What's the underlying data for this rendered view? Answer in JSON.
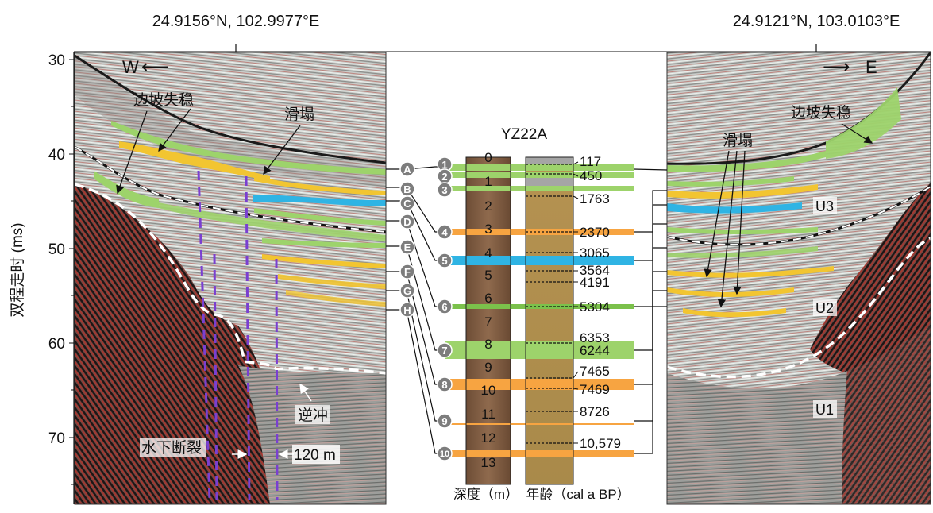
{
  "header": {
    "coord_west": "24.9156°N, 102.9977°E",
    "coord_east": "24.9121°N, 103.0103°E"
  },
  "axis": {
    "label": "双程走时 (ms)",
    "ticks": [
      "30",
      "40",
      "50",
      "60",
      "70"
    ]
  },
  "directions": {
    "west": "W",
    "east": "E",
    "west_arrow": "⟵",
    "east_arrow": "⟶"
  },
  "left_annotations": {
    "slope_failure": "边坡失稳",
    "slump": "滑塌",
    "fault": "水下断裂",
    "thrust": "逆冲",
    "distance": "120 m"
  },
  "right_annotations": {
    "slope_failure": "边坡失稳",
    "slump": "滑塌",
    "units": [
      "U3",
      "U2",
      "U1"
    ]
  },
  "core": {
    "name": "YZ22A",
    "depth_label": "深度（m）",
    "age_label": "年龄（cal a BP）",
    "depth_ticks": [
      "0",
      "1",
      "2",
      "3",
      "4",
      "5",
      "6",
      "7",
      "8",
      "9",
      "10",
      "11",
      "12",
      "13"
    ],
    "letters": [
      "A",
      "B",
      "C",
      "D",
      "E",
      "F",
      "G",
      "H"
    ],
    "events": [
      "1",
      "2",
      "3",
      "4",
      "5",
      "6",
      "7",
      "8",
      "9",
      "10"
    ],
    "ages": [
      "117",
      "450",
      "1763",
      "2370",
      "3065",
      "3564",
      "4191",
      "5304",
      "6353",
      "6244",
      "7465",
      "7469",
      "8726",
      "10,579"
    ]
  },
  "colors": {
    "green": "#9dd36b",
    "yellow": "#f2c531",
    "orange": "#f7a441",
    "blue": "#2fb4e4",
    "purple": "#7a3fd1",
    "gray_badge": "#7d7d7d"
  }
}
